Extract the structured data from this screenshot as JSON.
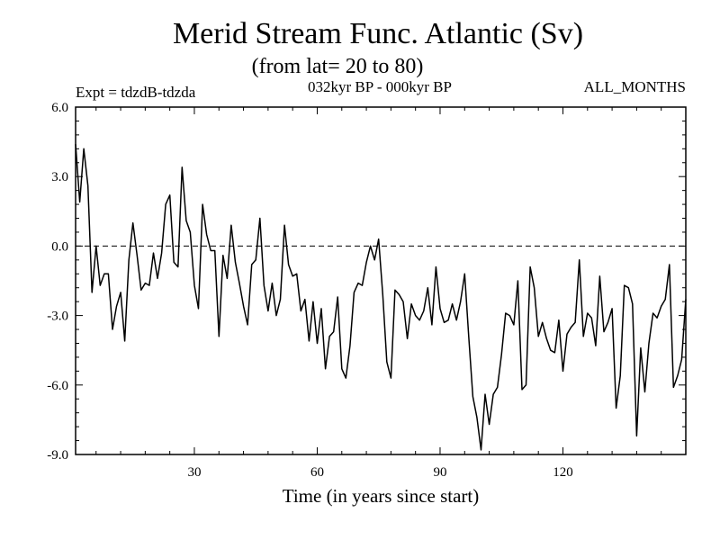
{
  "chart_data": {
    "type": "line",
    "title": "Merid Stream Func. Atlantic (Sv)",
    "subtitle": "(from lat= 20 to 80)",
    "left_label": "Expt = tdzdB-tdzda",
    "center_label": "032kyr BP - 000kyr BP",
    "right_label": "ALL_MONTHS",
    "xlabel": "Time (in years since start)",
    "ylabel": "",
    "xlim": [
      1,
      150
    ],
    "ylim": [
      -9,
      6
    ],
    "xticks": [
      30,
      60,
      90,
      120
    ],
    "xtick_labels": [
      "30",
      "60",
      "90",
      "120"
    ],
    "yticks": [
      6,
      3,
      0,
      -3,
      -6,
      -9
    ],
    "ytick_labels": [
      "6.0",
      "3.0",
      "0.0",
      "-3.0",
      "-6.0",
      "-9.0"
    ],
    "zero_line": "dashed",
    "grid": false,
    "series": [
      {
        "name": "Merid Stream Func.",
        "x": [
          1,
          2,
          3,
          4,
          5,
          6,
          7,
          8,
          9,
          10,
          11,
          12,
          13,
          14,
          15,
          16,
          17,
          18,
          19,
          20,
          21,
          22,
          23,
          24,
          25,
          26,
          27,
          28,
          29,
          30,
          31,
          32,
          33,
          34,
          35,
          36,
          37,
          38,
          39,
          40,
          41,
          42,
          43,
          44,
          45,
          46,
          47,
          48,
          49,
          50,
          51,
          52,
          53,
          54,
          55,
          56,
          57,
          58,
          59,
          60,
          61,
          62,
          63,
          64,
          65,
          66,
          67,
          68,
          69,
          70,
          71,
          72,
          73,
          74,
          75,
          76,
          77,
          78,
          79,
          80,
          81,
          82,
          83,
          84,
          85,
          86,
          87,
          88,
          89,
          90,
          91,
          92,
          93,
          94,
          95,
          96,
          97,
          98,
          99,
          100,
          101,
          102,
          103,
          104,
          105,
          106,
          107,
          108,
          109,
          110,
          111,
          112,
          113,
          114,
          115,
          116,
          117,
          118,
          119,
          120,
          121,
          122,
          123,
          124,
          125,
          126,
          127,
          128,
          129,
          130,
          131,
          132,
          133,
          134,
          135,
          136,
          137,
          138,
          139,
          140,
          141,
          142,
          143,
          144,
          145,
          146,
          147,
          148,
          149,
          150
        ],
        "values": [
          4.4,
          1.9,
          4.2,
          2.6,
          -2.0,
          0.0,
          -1.7,
          -1.2,
          -1.2,
          -3.6,
          -2.6,
          -2.0,
          -4.1,
          -0.6,
          1.0,
          -0.4,
          -1.9,
          -1.6,
          -1.7,
          -0.3,
          -1.4,
          -0.3,
          1.8,
          2.2,
          -0.7,
          -0.9,
          3.4,
          1.1,
          0.6,
          -1.7,
          -2.7,
          1.8,
          0.5,
          -0.2,
          -0.2,
          -3.9,
          -0.4,
          -1.4,
          0.9,
          -0.7,
          -1.6,
          -2.6,
          -3.4,
          -0.8,
          -0.6,
          1.2,
          -1.7,
          -2.8,
          -1.6,
          -3.0,
          -2.3,
          0.9,
          -0.8,
          -1.3,
          -1.2,
          -2.8,
          -2.3,
          -4.1,
          -2.4,
          -4.2,
          -2.7,
          -5.3,
          -3.9,
          -3.7,
          -2.2,
          -5.3,
          -5.7,
          -4.3,
          -2.0,
          -1.6,
          -1.7,
          -0.7,
          0.0,
          -0.6,
          0.3,
          -2.1,
          -5.0,
          -5.7,
          -1.9,
          -2.1,
          -2.4,
          -4.0,
          -2.5,
          -3.0,
          -3.2,
          -2.8,
          -1.8,
          -3.4,
          -0.9,
          -2.7,
          -3.3,
          -3.2,
          -2.5,
          -3.2,
          -2.4,
          -1.2,
          -3.9,
          -6.5,
          -7.4,
          -8.8,
          -6.4,
          -7.7,
          -6.4,
          -6.1,
          -4.7,
          -2.9,
          -3.0,
          -3.4,
          -1.5,
          -6.2,
          -6.0,
          -0.9,
          -1.8,
          -3.9,
          -3.3,
          -4.0,
          -4.5,
          -4.6,
          -3.2,
          -5.4,
          -3.8,
          -3.5,
          -3.3,
          -0.6,
          -3.9,
          -2.9,
          -3.1,
          -4.3,
          -1.3,
          -3.7,
          -3.3,
          -2.7,
          -7.0,
          -5.6,
          -1.7,
          -1.8,
          -2.5,
          -8.2,
          -4.4,
          -6.3,
          -4.2,
          -2.9,
          -3.1,
          -2.6,
          -2.3,
          -0.8,
          -6.1,
          -5.6,
          -4.9,
          -2.3
        ]
      }
    ]
  }
}
